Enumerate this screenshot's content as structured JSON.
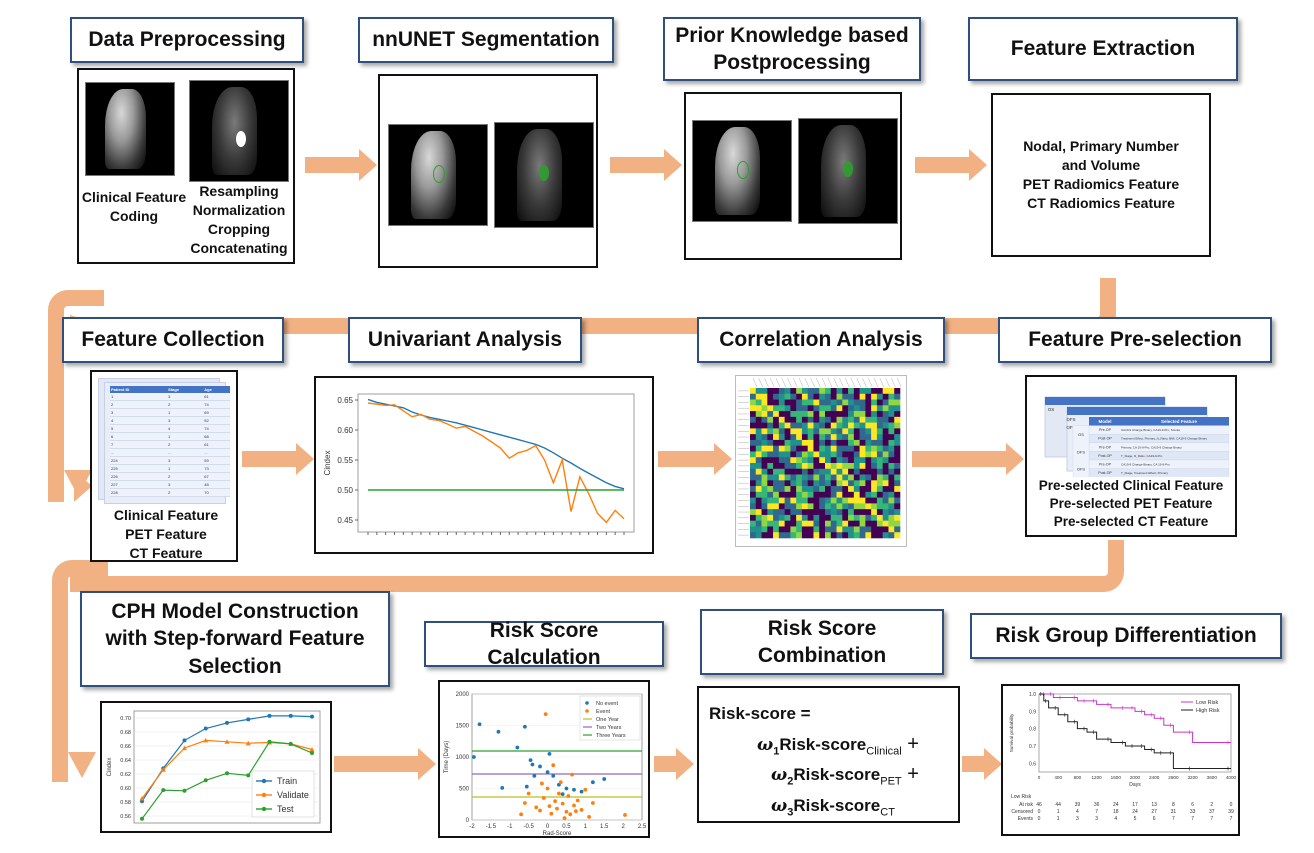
{
  "row1": {
    "s1": {
      "title": "Data Preprocessing",
      "left_lines": [
        "Clinical Feature",
        "Coding"
      ],
      "right_lines": [
        "Resampling",
        "Normalization",
        "Cropping",
        "Concatenating"
      ]
    },
    "s2": {
      "title": "nnUNET Segmentation"
    },
    "s3": {
      "title_l1": "Prior Knowledge based",
      "title_l2": "Postprocessing"
    },
    "s4": {
      "title": "Feature Extraction",
      "lines": [
        "Nodal, Primary Number",
        "and Volume",
        "PET Radiomics Feature",
        "CT Radiomics Feature"
      ]
    }
  },
  "row2": {
    "s5": {
      "title": "Feature Collection",
      "lines": [
        "Clinical Feature",
        "PET Feature",
        "CT Feature"
      ],
      "table_headers": [
        "Patient ID",
        "Stage",
        "Age"
      ],
      "table_rows": [
        [
          "1",
          "3",
          "61"
        ],
        [
          "2",
          "2",
          "74"
        ],
        [
          "3",
          "1",
          "69"
        ],
        [
          "4",
          "3",
          "52"
        ],
        [
          "5",
          "4",
          "74"
        ],
        [
          "6",
          "1",
          "68"
        ],
        [
          "7",
          "2",
          "61"
        ],
        [
          "...",
          "...",
          "..."
        ],
        [
          "224",
          "3",
          "59"
        ],
        [
          "225",
          "1",
          "73"
        ],
        [
          "226",
          "2",
          "67"
        ],
        [
          "227",
          "3",
          "48"
        ],
        [
          "228",
          "2",
          "70"
        ]
      ]
    },
    "s6": {
      "title": "Univariant Analysis"
    },
    "s7": {
      "title": "Correlation Analysis"
    },
    "s8": {
      "title": "Feature Pre-selection",
      "lines": [
        "Pre-selected Clinical Feature",
        "Pre-selected PET Feature",
        "Pre-selected CT Feature"
      ],
      "mini_headers": [
        "Model",
        "Selected Feature"
      ],
      "mini_rows": [
        [
          "Pre-OP",
          "CA19-9 Change Binary, CA19-9-Pro, Smoke"
        ],
        [
          "Post-OP",
          "Treatment Effect, Primary_N_Ratio, BMI, CA19-9 Change Binary"
        ],
        [
          "Pre-OP",
          "Primary, CA 19-9-Pro, CA19-9 Change Binary"
        ],
        [
          "Post-OP",
          "T_Stage, N_Ratio, CA19-9-Pro"
        ],
        [
          "Pre-OP",
          "CA19-9 Change Binary, CA 19-9-Pro"
        ],
        [
          "Post-OP",
          "T_Stage, Treatment Effect, Primary"
        ]
      ],
      "mini_groups": [
        "OS",
        "DFS",
        "OFS",
        "DFFS"
      ]
    }
  },
  "row3": {
    "s9": {
      "title_l1": "CPH Model Construction",
      "title_l2": "with Step-forward Feature",
      "title_l3": "Selection"
    },
    "s10": {
      "title": "Risk Score Calculation"
    },
    "s11": {
      "title_l1": "Risk Score",
      "title_l2": "Combination",
      "formula_head": "Risk-score =",
      "terms": [
        {
          "coef": "ω",
          "sub": "1",
          "name": "Risk-score",
          "subname": "Clinical",
          "op": "+"
        },
        {
          "coef": "ω",
          "sub": "2",
          "name": "Risk-score",
          "subname": "PET",
          "op": "+"
        },
        {
          "coef": "ω",
          "sub": "3",
          "name": "Risk-score",
          "subname": "CT",
          "op": ""
        }
      ]
    },
    "s12": {
      "title": "Risk Group Differentiation"
    }
  },
  "colors": {
    "arrow": "#f2b183",
    "title_border": "#2f4f7f",
    "blue": "#1f77b4",
    "orange": "#ff7f0e",
    "green": "#2ca02c",
    "purple": "#9467bd",
    "olive": "#bcbd22",
    "magenta": "#cc33cc"
  },
  "chart_data": [
    {
      "type": "line",
      "ylabel": "Cindex",
      "ylim": [
        0.43,
        0.66
      ],
      "yticks": [
        0.45,
        0.5,
        0.55,
        0.6,
        0.65
      ],
      "series": [
        {
          "values": [
            0.651,
            0.646,
            0.643,
            0.64,
            0.637,
            0.63,
            0.625,
            0.621,
            0.618,
            0.615,
            0.612,
            0.608,
            0.604,
            0.6,
            0.596,
            0.592,
            0.588,
            0.584,
            0.58,
            0.576,
            0.57,
            0.562,
            0.553,
            0.545,
            0.536,
            0.528,
            0.52,
            0.512,
            0.506,
            0.502
          ]
        },
        {
          "values": [
            0.645,
            0.643,
            0.641,
            0.642,
            0.632,
            0.622,
            0.626,
            0.618,
            0.616,
            0.61,
            0.603,
            0.606,
            0.598,
            0.59,
            0.58,
            0.57,
            0.553,
            0.562,
            0.566,
            0.574,
            0.55,
            0.512,
            0.55,
            0.464,
            0.522,
            0.494,
            0.461,
            0.446,
            0.466,
            0.452
          ]
        },
        {
          "values": [
            0.5,
            0.5,
            0.5,
            0.5,
            0.5,
            0.5,
            0.5,
            0.5,
            0.5,
            0.5,
            0.5,
            0.5,
            0.5,
            0.5,
            0.5,
            0.5,
            0.5,
            0.5,
            0.5,
            0.5,
            0.5,
            0.5,
            0.5,
            0.5,
            0.5,
            0.5,
            0.5,
            0.5,
            0.5,
            0.5
          ]
        }
      ]
    },
    {
      "type": "line",
      "ylabel": "Cindex",
      "ylim": [
        0.55,
        0.71
      ],
      "yticks": [
        0.56,
        0.58,
        0.6,
        0.62,
        0.64,
        0.66,
        0.68,
        0.7
      ],
      "series": [
        {
          "name": "Train",
          "values": [
            0.581,
            0.628,
            0.668,
            0.685,
            0.693,
            0.698,
            0.703,
            0.703,
            0.702
          ]
        },
        {
          "name": "Validate",
          "values": [
            0.585,
            0.626,
            0.657,
            0.668,
            0.666,
            0.664,
            0.665,
            0.663,
            0.655
          ]
        },
        {
          "name": "Test",
          "values": [
            0.556,
            0.597,
            0.596,
            0.611,
            0.621,
            0.618,
            0.666,
            0.663,
            0.65
          ]
        }
      ]
    },
    {
      "type": "scatter",
      "xlabel": "Rad-Score",
      "ylabel": "Time (Days)",
      "xlim": [
        -2,
        2.5
      ],
      "ylim": [
        0,
        2000
      ],
      "xticks": [
        "-2",
        "-1.5",
        "-1",
        "-0.5",
        "0",
        "0.5",
        "1",
        "1.5",
        "2",
        "2.5"
      ],
      "yticks": [
        "0",
        "500",
        "1000",
        "1500",
        "2000"
      ],
      "legend": [
        "No event",
        "Event",
        "One Year",
        "Two Years",
        "Three Years"
      ],
      "hlines": [
        365,
        730,
        1095
      ],
      "no_event": [
        [
          -1.95,
          1000
        ],
        [
          -1.8,
          1520
        ],
        [
          -1.3,
          1400
        ],
        [
          -0.8,
          1150
        ],
        [
          -0.6,
          1480
        ],
        [
          -0.45,
          950
        ],
        [
          -0.4,
          880
        ],
        [
          -0.35,
          700
        ],
        [
          -0.2,
          850
        ],
        [
          0,
          760
        ],
        [
          0.15,
          700
        ],
        [
          0.3,
          560
        ],
        [
          0.5,
          500
        ],
        [
          0.7,
          480
        ],
        [
          0.9,
          450
        ],
        [
          1.2,
          600
        ],
        [
          -0.55,
          530
        ],
        [
          0.05,
          1050
        ],
        [
          1.5,
          650
        ],
        [
          0.4,
          410
        ],
        [
          -1.2,
          510
        ]
      ],
      "event": [
        [
          -0.3,
          200
        ],
        [
          -0.2,
          150
        ],
        [
          -0.1,
          350
        ],
        [
          0,
          500
        ],
        [
          0.05,
          220
        ],
        [
          0.1,
          100
        ],
        [
          0.2,
          300
        ],
        [
          0.25,
          180
        ],
        [
          0.3,
          420
        ],
        [
          0.35,
          600
        ],
        [
          0.4,
          260
        ],
        [
          0.5,
          130
        ],
        [
          0.55,
          380
        ],
        [
          0.6,
          90
        ],
        [
          0.7,
          230
        ],
        [
          0.8,
          310
        ],
        [
          0.9,
          160
        ],
        [
          1.0,
          480
        ],
        [
          1.1,
          50
        ],
        [
          1.2,
          270
        ],
        [
          -0.5,
          420
        ],
        [
          -0.6,
          270
        ],
        [
          -0.7,
          90
        ],
        [
          -0.05,
          1680
        ],
        [
          0.15,
          870
        ],
        [
          0.65,
          720
        ],
        [
          2.05,
          80
        ],
        [
          -0.15,
          580
        ],
        [
          0.45,
          30
        ],
        [
          0.75,
          140
        ]
      ]
    },
    {
      "type": "line",
      "xlabel": "Days",
      "ylabel": "Survival probability",
      "xlim": [
        0,
        4000
      ],
      "ylim": [
        0.55,
        1.0
      ],
      "xticks": [
        "0",
        "400",
        "800",
        "1200",
        "1600",
        "2000",
        "2400",
        "2800",
        "3200",
        "3600",
        "4000"
      ],
      "yticks": [
        "0.6",
        "0.7",
        "0.8",
        "0.9",
        "1.0"
      ],
      "series": [
        {
          "name": "Low Risk",
          "x": [
            0,
            150,
            300,
            500,
            800,
            1000,
            1200,
            1500,
            1800,
            2000,
            2200,
            2400,
            2600,
            2800,
            3200,
            4000
          ],
          "y": [
            1.0,
            1.0,
            0.98,
            0.98,
            0.96,
            0.96,
            0.94,
            0.92,
            0.92,
            0.9,
            0.88,
            0.86,
            0.82,
            0.78,
            0.72,
            0.72
          ]
        },
        {
          "name": "High Risk",
          "x": [
            0,
            100,
            200,
            400,
            600,
            800,
            1000,
            1200,
            1500,
            1800,
            2000,
            2200,
            2400,
            2600,
            2800,
            3200,
            4000
          ],
          "y": [
            1.0,
            0.96,
            0.92,
            0.88,
            0.84,
            0.8,
            0.78,
            0.74,
            0.72,
            0.7,
            0.7,
            0.68,
            0.66,
            0.66,
            0.57,
            0.57,
            0.57
          ]
        }
      ],
      "risk_table": {
        "title": "Low Risk",
        "rows": [
          {
            "label": "At risk",
            "values": [
              "46",
              "44",
              "39",
              "36",
              "24",
              "17",
              "13",
              "8",
              "6",
              "2",
              "0"
            ]
          },
          {
            "label": "Censored",
            "values": [
              "0",
              "1",
              "4",
              "7",
              "18",
              "24",
              "27",
              "31",
              "33",
              "37",
              "39"
            ]
          },
          {
            "label": "Events",
            "values": [
              "0",
              "1",
              "3",
              "3",
              "4",
              "5",
              "6",
              "7",
              "7",
              "7",
              "7"
            ]
          }
        ]
      }
    }
  ]
}
